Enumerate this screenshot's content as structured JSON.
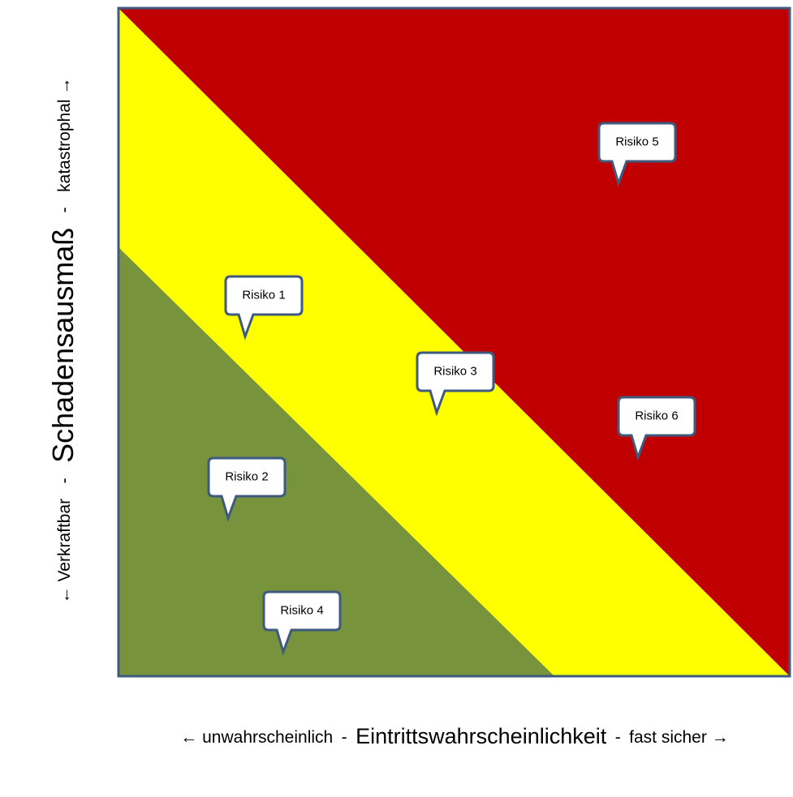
{
  "y_axis": {
    "low": "← Verkraftbar",
    "separator": "-",
    "title": "Schadensausmaß",
    "high": "katastrophal →"
  },
  "x_axis": {
    "low": "← unwahrscheinlich",
    "separator": "-",
    "title": "Eintrittswahrscheinlichkeit",
    "high": "fast sicher →"
  },
  "risks": [
    "Risiko 1",
    "Risiko 2",
    "Risiko 3",
    "Risiko 4",
    "Risiko 5",
    "Risiko 6"
  ]
}
